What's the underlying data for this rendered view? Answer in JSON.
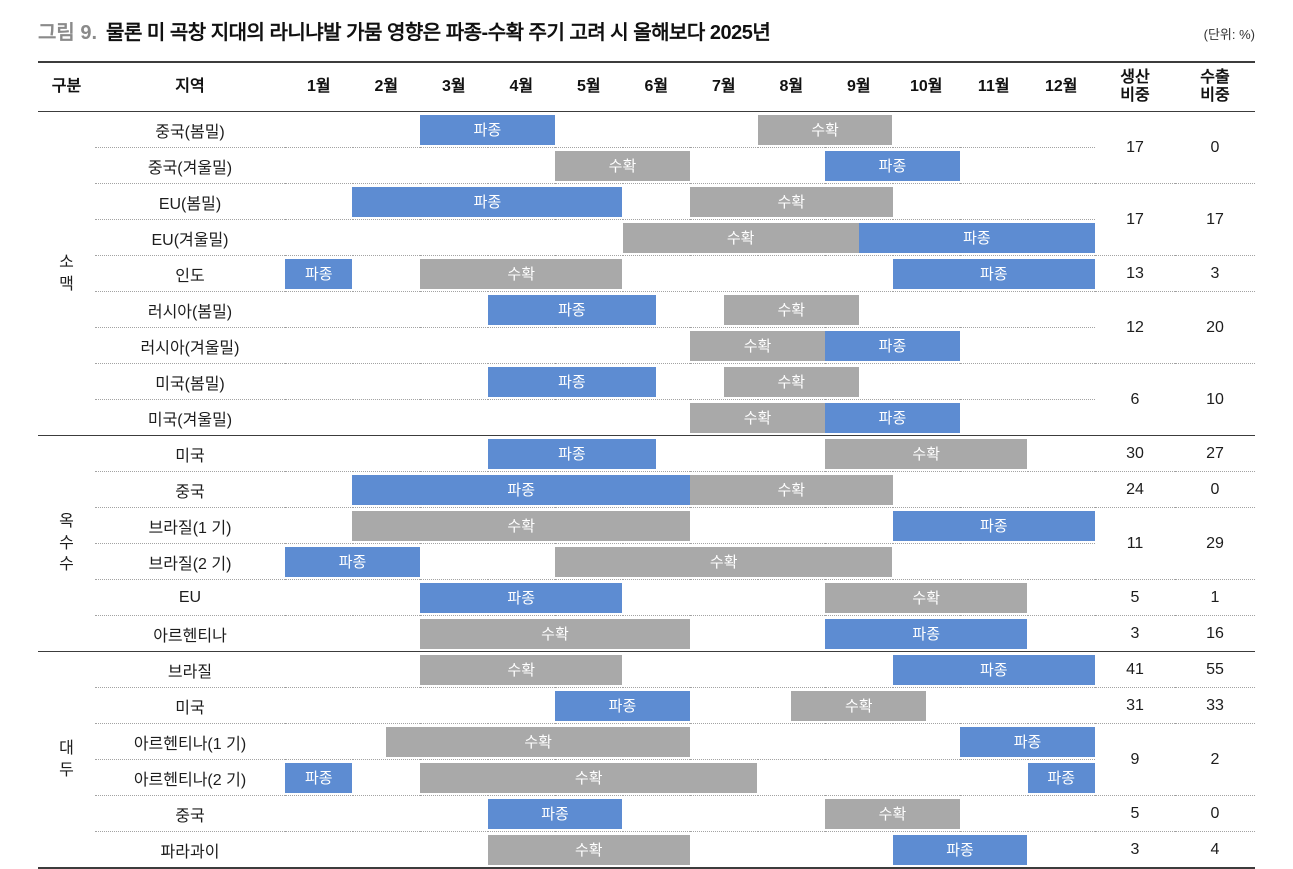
{
  "header": {
    "figure_label": "그림 9.",
    "title": "물론 미 곡창 지대의 라니냐발 가뭄 영향은 파종-수확 주기 고려 시 올해보다 2025년",
    "unit_note": "(단위: %)"
  },
  "colors": {
    "planting_bar": "#5D8CD2",
    "harvest_bar": "#A9A9A9",
    "bar_text": "#FFFFFF",
    "rule_dark": "#3C3C3C",
    "figure_label_gray": "#8A8A8A"
  },
  "chart_data": {
    "type": "table",
    "subtype": "crop-calendar-gantt",
    "title": "그림 9. 물론 미 곡창 지대의 라니냐발 가뭄 영향은 파종-수확 주기 고려 시 올해보다 2025년",
    "unit": "%",
    "bar_types": {
      "planting": "파종",
      "harvest": "수확"
    },
    "headers": {
      "group": "구분",
      "region": "지역",
      "months": [
        "1월",
        "2월",
        "3월",
        "4월",
        "5월",
        "6월",
        "7월",
        "8월",
        "9월",
        "10월",
        "11월",
        "12월"
      ],
      "production": "생산\n비중",
      "export": "수출\n비중"
    },
    "sections": [
      {
        "group": "소맥",
        "rows": [
          {
            "region": "중국(봄밀)",
            "bars": [
              {
                "kind": "planting",
                "start": 3,
                "end": 5
              },
              {
                "kind": "harvest",
                "start": 8,
                "end": 10
              }
            ]
          },
          {
            "region": "중국(겨울밀)",
            "bars": [
              {
                "kind": "harvest",
                "start": 5,
                "end": 7
              },
              {
                "kind": "planting",
                "start": 9,
                "end": 11
              }
            ]
          },
          {
            "region": "EU(봄밀)",
            "bars": [
              {
                "kind": "planting",
                "start": 2,
                "end": 6
              },
              {
                "kind": "harvest",
                "start": 7,
                "end": 10
              }
            ]
          },
          {
            "region": "EU(겨울밀)",
            "bars": [
              {
                "kind": "harvest",
                "start": 6,
                "end": 9.5
              },
              {
                "kind": "planting",
                "start": 9.5,
                "end": 13
              }
            ]
          },
          {
            "region": "인도",
            "bars": [
              {
                "kind": "planting",
                "start": 1,
                "end": 2
              },
              {
                "kind": "harvest",
                "start": 3,
                "end": 6
              },
              {
                "kind": "planting",
                "start": 10,
                "end": 13
              }
            ]
          },
          {
            "region": "러시아(봄밀)",
            "bars": [
              {
                "kind": "planting",
                "start": 4,
                "end": 6.5
              },
              {
                "kind": "harvest",
                "start": 7.5,
                "end": 9.5
              }
            ]
          },
          {
            "region": "러시아(겨울밀)",
            "bars": [
              {
                "kind": "harvest",
                "start": 7,
                "end": 9
              },
              {
                "kind": "planting",
                "start": 9,
                "end": 11
              }
            ]
          },
          {
            "region": "미국(봄밀)",
            "bars": [
              {
                "kind": "planting",
                "start": 4,
                "end": 6.5
              },
              {
                "kind": "harvest",
                "start": 7.5,
                "end": 9.5
              }
            ]
          },
          {
            "region": "미국(겨울밀)",
            "bars": [
              {
                "kind": "harvest",
                "start": 7,
                "end": 9
              },
              {
                "kind": "planting",
                "start": 9,
                "end": 11
              }
            ]
          }
        ],
        "stats": [
          {
            "span": 2,
            "production": 17,
            "export": 0
          },
          {
            "span": 2,
            "production": 17,
            "export": 17
          },
          {
            "span": 1,
            "production": 13,
            "export": 3
          },
          {
            "span": 2,
            "production": 12,
            "export": 20
          },
          {
            "span": 2,
            "production": 6,
            "export": 10
          }
        ]
      },
      {
        "group": "옥수수",
        "rows": [
          {
            "region": "미국",
            "bars": [
              {
                "kind": "planting",
                "start": 4,
                "end": 6.5
              },
              {
                "kind": "harvest",
                "start": 9,
                "end": 12
              }
            ]
          },
          {
            "region": "중국",
            "bars": [
              {
                "kind": "planting",
                "start": 2,
                "end": 7
              },
              {
                "kind": "harvest",
                "start": 7,
                "end": 10
              }
            ]
          },
          {
            "region": "브라질(1 기)",
            "bars": [
              {
                "kind": "harvest",
                "start": 2,
                "end": 7
              },
              {
                "kind": "planting",
                "start": 10,
                "end": 13
              }
            ]
          },
          {
            "region": "브라질(2 기)",
            "bars": [
              {
                "kind": "planting",
                "start": 1,
                "end": 3
              },
              {
                "kind": "harvest",
                "start": 5,
                "end": 10
              }
            ]
          },
          {
            "region": "EU",
            "bars": [
              {
                "kind": "planting",
                "start": 3,
                "end": 6
              },
              {
                "kind": "harvest",
                "start": 9,
                "end": 12
              }
            ]
          },
          {
            "region": "아르헨티나",
            "bars": [
              {
                "kind": "harvest",
                "start": 3,
                "end": 7
              },
              {
                "kind": "planting",
                "start": 9,
                "end": 12
              }
            ]
          }
        ],
        "stats": [
          {
            "span": 1,
            "production": 30,
            "export": 27
          },
          {
            "span": 1,
            "production": 24,
            "export": 0
          },
          {
            "span": 2,
            "production": 11,
            "export": 29
          },
          {
            "span": 1,
            "production": 5,
            "export": 1
          },
          {
            "span": 1,
            "production": 3,
            "export": 16
          }
        ]
      },
      {
        "group": "대두",
        "rows": [
          {
            "region": "브라질",
            "bars": [
              {
                "kind": "harvest",
                "start": 3,
                "end": 6
              },
              {
                "kind": "planting",
                "start": 10,
                "end": 13
              }
            ]
          },
          {
            "region": "미국",
            "bars": [
              {
                "kind": "planting",
                "start": 5,
                "end": 7
              },
              {
                "kind": "harvest",
                "start": 8.5,
                "end": 10.5
              }
            ]
          },
          {
            "region": "아르헨티나(1 기)",
            "bars": [
              {
                "kind": "harvest",
                "start": 2.5,
                "end": 7
              },
              {
                "kind": "planting",
                "start": 11,
                "end": 13
              }
            ]
          },
          {
            "region": "아르헨티나(2 기)",
            "bars": [
              {
                "kind": "planting",
                "start": 1,
                "end": 2
              },
              {
                "kind": "harvest",
                "start": 3,
                "end": 8
              },
              {
                "kind": "planting",
                "start": 12,
                "end": 13
              }
            ]
          },
          {
            "region": "중국",
            "bars": [
              {
                "kind": "planting",
                "start": 4,
                "end": 6
              },
              {
                "kind": "harvest",
                "start": 9,
                "end": 11
              }
            ]
          },
          {
            "region": "파라과이",
            "bars": [
              {
                "kind": "harvest",
                "start": 4,
                "end": 7
              },
              {
                "kind": "planting",
                "start": 10,
                "end": 12
              }
            ]
          }
        ],
        "stats": [
          {
            "span": 1,
            "production": 41,
            "export": 55
          },
          {
            "span": 1,
            "production": 31,
            "export": 33
          },
          {
            "span": 2,
            "production": 9,
            "export": 2
          },
          {
            "span": 1,
            "production": 5,
            "export": 0
          },
          {
            "span": 1,
            "production": 3,
            "export": 4
          }
        ]
      }
    ]
  }
}
